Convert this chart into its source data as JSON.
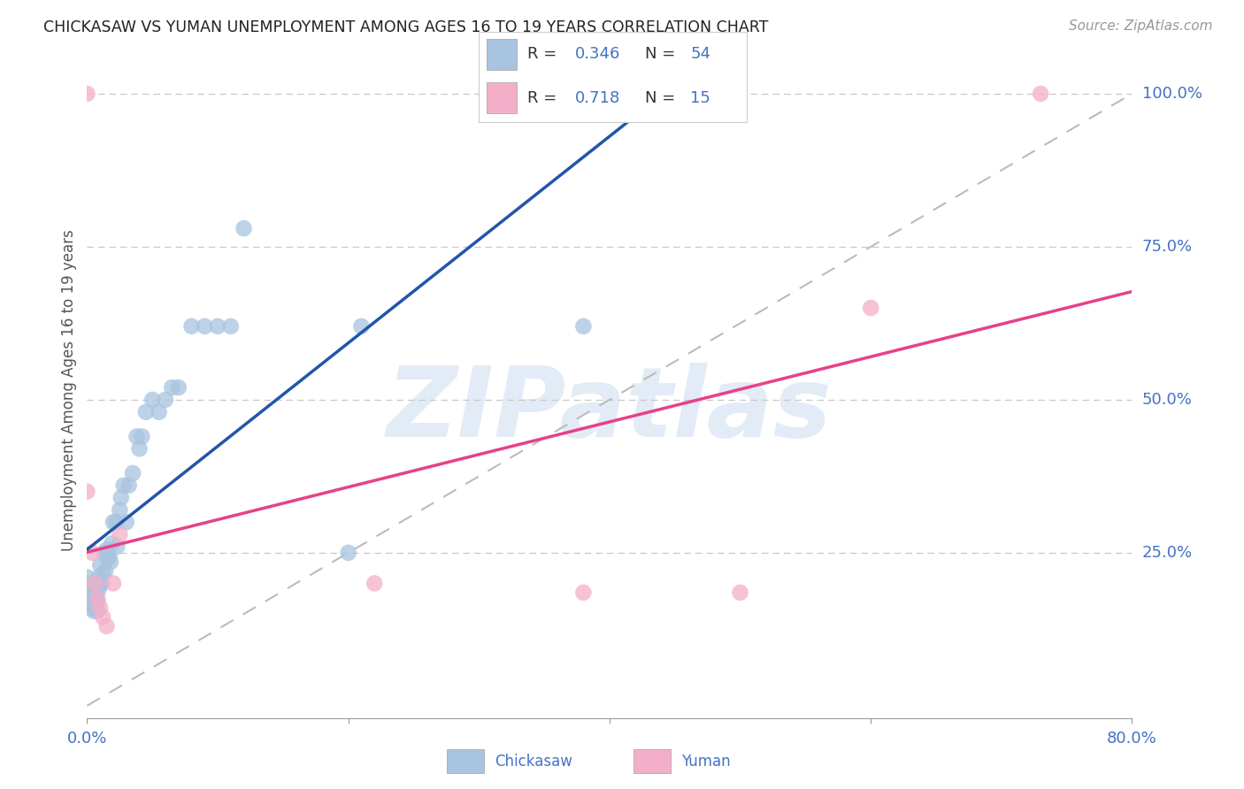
{
  "title": "CHICKASAW VS YUMAN UNEMPLOYMENT AMONG AGES 16 TO 19 YEARS CORRELATION CHART",
  "source": "Source: ZipAtlas.com",
  "ylabel": "Unemployment Among Ages 16 to 19 years",
  "xlim": [
    0.0,
    0.8
  ],
  "ylim": [
    -0.02,
    1.05
  ],
  "yticks": [
    0.25,
    0.5,
    0.75,
    1.0
  ],
  "yticklabels": [
    "25.0%",
    "50.0%",
    "75.0%",
    "100.0%"
  ],
  "tick_color": "#4472c4",
  "background_color": "#ffffff",
  "grid_color": "#c8c8c8",
  "watermark_text": "ZIPatlas",
  "chickasaw_color": "#a8c4e0",
  "yuman_color": "#f4afc8",
  "chickasaw_line_color": "#2255aa",
  "yuman_line_color": "#e8408a",
  "diagonal_color": "#bbbbbb",
  "R_chickasaw": 0.346,
  "N_chickasaw": 54,
  "R_yuman": 0.718,
  "N_yuman": 15,
  "chickasaw_x": [
    0.0,
    0.0,
    0.002,
    0.003,
    0.003,
    0.004,
    0.004,
    0.005,
    0.005,
    0.006,
    0.006,
    0.007,
    0.007,
    0.008,
    0.008,
    0.009,
    0.009,
    0.01,
    0.01,
    0.011,
    0.012,
    0.013,
    0.014,
    0.015,
    0.016,
    0.017,
    0.018,
    0.019,
    0.02,
    0.022,
    0.023,
    0.025,
    0.026,
    0.028,
    0.03,
    0.032,
    0.035,
    0.038,
    0.04,
    0.042,
    0.045,
    0.05,
    0.055,
    0.06,
    0.065,
    0.07,
    0.08,
    0.09,
    0.1,
    0.11,
    0.12,
    0.2,
    0.21,
    0.38
  ],
  "chickasaw_y": [
    0.2,
    0.21,
    0.18,
    0.17,
    0.195,
    0.16,
    0.175,
    0.155,
    0.18,
    0.165,
    0.185,
    0.16,
    0.175,
    0.155,
    0.17,
    0.19,
    0.21,
    0.2,
    0.23,
    0.2,
    0.215,
    0.25,
    0.22,
    0.255,
    0.24,
    0.245,
    0.235,
    0.265,
    0.3,
    0.3,
    0.26,
    0.32,
    0.34,
    0.36,
    0.3,
    0.36,
    0.38,
    0.44,
    0.42,
    0.44,
    0.48,
    0.5,
    0.48,
    0.5,
    0.52,
    0.52,
    0.62,
    0.62,
    0.62,
    0.62,
    0.78,
    0.25,
    0.62,
    0.62
  ],
  "yuman_x": [
    0.0,
    0.0,
    0.004,
    0.006,
    0.008,
    0.01,
    0.012,
    0.015,
    0.02,
    0.025,
    0.22,
    0.38,
    0.5,
    0.6,
    0.73
  ],
  "yuman_y": [
    0.35,
    1.0,
    0.25,
    0.2,
    0.175,
    0.16,
    0.145,
    0.13,
    0.2,
    0.28,
    0.2,
    0.185,
    0.185,
    0.65,
    1.0
  ]
}
